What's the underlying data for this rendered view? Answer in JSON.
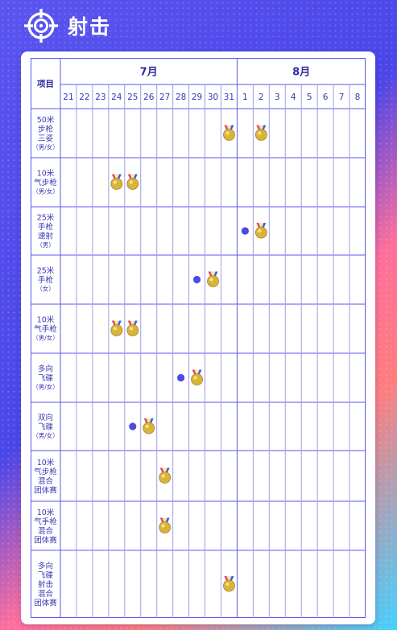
{
  "header": {
    "title": "射击",
    "icon": "crosshair-icon"
  },
  "table": {
    "corner_label": "项目",
    "months": [
      {
        "label": "7月",
        "days": [
          "21",
          "22",
          "23",
          "24",
          "25",
          "26",
          "27",
          "28",
          "29",
          "30",
          "31"
        ]
      },
      {
        "label": "8月",
        "days": [
          "1",
          "2",
          "3",
          "4",
          "5",
          "6",
          "7",
          "8"
        ]
      }
    ],
    "events": [
      {
        "label_lines": [
          "50米",
          "步枪",
          "三姿"
        ],
        "gender": "（男/女）",
        "marks": [
          {
            "day": "7-31",
            "type": "gold"
          },
          {
            "day": "8-2",
            "type": "gold"
          }
        ]
      },
      {
        "label_lines": [
          "10米",
          "气步枪"
        ],
        "gender": "（男/女）",
        "marks": [
          {
            "day": "7-24",
            "type": "gold"
          },
          {
            "day": "7-25",
            "type": "gold"
          }
        ]
      },
      {
        "label_lines": [
          "25米",
          "手枪",
          "速射"
        ],
        "gender": "（男）",
        "marks": [
          {
            "day": "8-1",
            "type": "dot"
          },
          {
            "day": "8-2",
            "type": "gold"
          }
        ]
      },
      {
        "label_lines": [
          "25米",
          "手枪"
        ],
        "gender": "（女）",
        "marks": [
          {
            "day": "7-29",
            "type": "dot"
          },
          {
            "day": "7-30",
            "type": "gold"
          }
        ]
      },
      {
        "label_lines": [
          "10米",
          "气手枪"
        ],
        "gender": "（男/女）",
        "marks": [
          {
            "day": "7-24",
            "type": "gold"
          },
          {
            "day": "7-25",
            "type": "gold"
          }
        ]
      },
      {
        "label_lines": [
          "多向",
          "飞碟"
        ],
        "gender": "（男/女）",
        "marks": [
          {
            "day": "7-28",
            "type": "dot"
          },
          {
            "day": "7-29",
            "type": "gold"
          }
        ]
      },
      {
        "label_lines": [
          "双向",
          "飞碟"
        ],
        "gender": "（男/女）",
        "marks": [
          {
            "day": "7-25",
            "type": "dot"
          },
          {
            "day": "7-26",
            "type": "gold"
          }
        ]
      },
      {
        "label_lines": [
          "10米",
          "气步枪",
          "混合",
          "团体赛"
        ],
        "gender": "",
        "marks": [
          {
            "day": "7-27",
            "type": "gold"
          }
        ]
      },
      {
        "label_lines": [
          "10米",
          "气手枪",
          "混合",
          "团体赛"
        ],
        "gender": "",
        "marks": [
          {
            "day": "7-27",
            "type": "gold"
          }
        ]
      },
      {
        "label_lines": [
          "多向",
          "飞碟",
          "射击",
          "混合",
          "团体赛"
        ],
        "gender": "",
        "marks": [
          {
            "day": "7-31",
            "type": "gold"
          }
        ]
      }
    ]
  },
  "colors": {
    "grid": "#5b57ef",
    "dot": "#4b4ae6",
    "gold": "#d9b43a",
    "ribbon_red": "#e2455a",
    "ribbon_blue": "#4a58d8"
  }
}
